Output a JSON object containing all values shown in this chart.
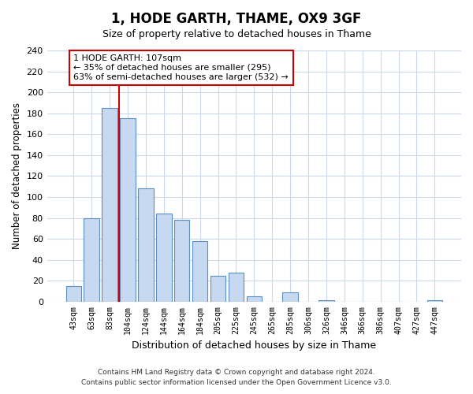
{
  "title": "1, HODE GARTH, THAME, OX9 3GF",
  "subtitle": "Size of property relative to detached houses in Thame",
  "xlabel": "Distribution of detached houses by size in Thame",
  "ylabel": "Number of detached properties",
  "bar_labels": [
    "43sqm",
    "63sqm",
    "83sqm",
    "104sqm",
    "124sqm",
    "144sqm",
    "164sqm",
    "184sqm",
    "205sqm",
    "225sqm",
    "245sqm",
    "265sqm",
    "285sqm",
    "306sqm",
    "326sqm",
    "346sqm",
    "366sqm",
    "386sqm",
    "407sqm",
    "427sqm",
    "447sqm"
  ],
  "bar_values": [
    15,
    80,
    185,
    175,
    108,
    84,
    78,
    58,
    25,
    28,
    5,
    0,
    9,
    0,
    1,
    0,
    0,
    0,
    0,
    0,
    1
  ],
  "bar_color": "#c6d9f0",
  "bar_edge_color": "#5a8fc3",
  "vline_x": 3,
  "vline_color": "#cc0000",
  "annotation_line1": "1 HODE GARTH: 107sqm",
  "annotation_line2": "← 35% of detached houses are smaller (295)",
  "annotation_line3": "63% of semi-detached houses are larger (532) →",
  "annotation_box_color": "#ffffff",
  "annotation_box_edge_color": "#cc0000",
  "ylim": [
    0,
    240
  ],
  "yticks": [
    0,
    20,
    40,
    60,
    80,
    100,
    120,
    140,
    160,
    180,
    200,
    220,
    240
  ],
  "footer_line1": "Contains HM Land Registry data © Crown copyright and database right 2024.",
  "footer_line2": "Contains public sector information licensed under the Open Government Licence v3.0.",
  "background_color": "#ffffff",
  "grid_color": "#cdd8ea"
}
